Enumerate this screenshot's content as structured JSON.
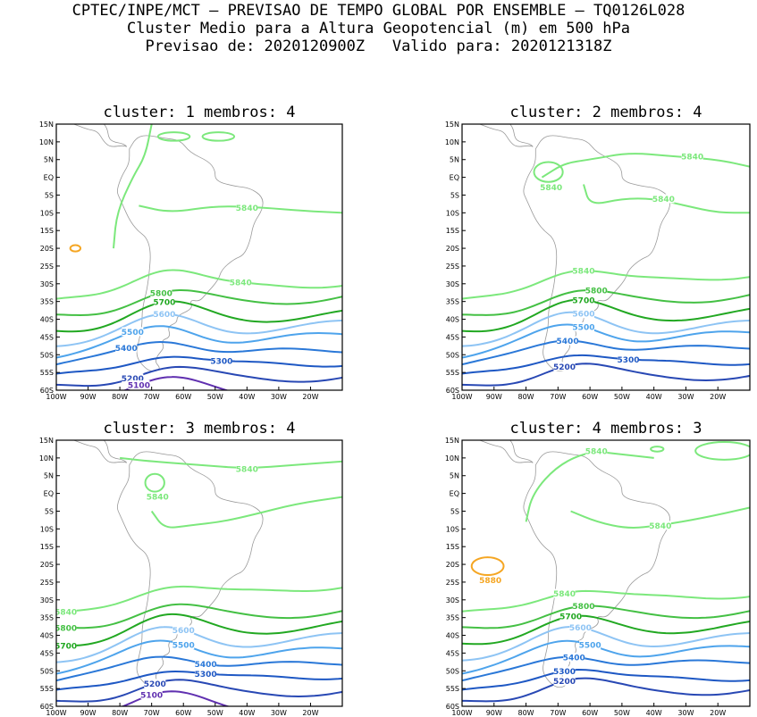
{
  "header": {
    "line1": "CPTEC/INPE/MCT — PREVISAO DE TEMPO GLOBAL POR ENSEMBLE — TQ0126L028",
    "line2": "Cluster Medio para a Altura Geopotencial (m) em 500 hPa",
    "line3": "Previsao de: 2020120900Z   Valido para: 2020121318Z"
  },
  "chart_data": {
    "type": "contour-map",
    "variable": "500 hPa geopotential height (m)",
    "lon_range": [
      -100,
      -10
    ],
    "lat_range": [
      -60,
      15
    ],
    "x_ticks": [
      "100W",
      "90W",
      "80W",
      "70W",
      "60W",
      "50W",
      "40W",
      "30W",
      "20W"
    ],
    "x_tick_lons": [
      -100,
      -90,
      -80,
      -70,
      -60,
      -50,
      -40,
      -30,
      -20
    ],
    "y_ticks": [
      "15N",
      "10N",
      "5N",
      "EQ",
      "5S",
      "10S",
      "15S",
      "20S",
      "25S",
      "30S",
      "35S",
      "40S",
      "45S",
      "50S",
      "55S",
      "60S"
    ],
    "y_tick_lats": [
      15,
      10,
      5,
      0,
      -5,
      -10,
      -15,
      -20,
      -25,
      -30,
      -35,
      -40,
      -45,
      -50,
      -55,
      -60
    ],
    "level_colors": {
      "5880": "#f5a623",
      "5840": "#7ce87c",
      "5800": "#44c044",
      "5700": "#22a822",
      "5600": "#8ec4f4",
      "5500": "#4ea4ec",
      "5400": "#2a78d8",
      "5300": "#1e58c4",
      "5200": "#2848b4",
      "5100": "#6030b0"
    },
    "panels": [
      {
        "title": "cluster: 1   membros: 4",
        "contours": [
          {
            "level": 5840,
            "lat_w": -35.5,
            "lat_c": -24.5,
            "lat_e": -29.5,
            "label": "5840",
            "label_lon": -42
          },
          {
            "level": 5800,
            "lat_w": -39.5,
            "lat_c": -31.5,
            "lat_e": -33.5,
            "label": "5800",
            "label_lon": -67
          },
          {
            "level": 5700,
            "lat_w": -43.0,
            "lat_c": -35.5,
            "lat_e": -38.5,
            "label": "5700",
            "label_lon": -66
          },
          {
            "level": 5600,
            "lat_w": -46.5,
            "lat_c": -39.0,
            "lat_e": -41.5,
            "label": "5600",
            "label_lon": -66
          },
          {
            "level": 5500,
            "lat_w": -50.0,
            "lat_c": -41.5,
            "lat_e": -44.5,
            "label": "5500",
            "label_lon": -76
          },
          {
            "level": 5400,
            "lat_w": -53.0,
            "lat_c": -45.0,
            "lat_e": -48.5,
            "label": "5400",
            "label_lon": -78
          },
          {
            "level": 5300,
            "lat_w": -56.5,
            "lat_c": -49.0,
            "lat_e": -52.0,
            "label": "5300",
            "label_lon": -48
          },
          {
            "level": 5200,
            "lat_w": -59.5,
            "lat_c": -53.0,
            "lat_e": -56.0,
            "label": "5200",
            "label_lon": -76
          },
          {
            "level": 5100,
            "lat_w": -62.0,
            "lat_c": -57.0,
            "lat_e": -61.0,
            "label": "5100",
            "label_lon": -74
          }
        ]
      },
      {
        "title": "cluster: 2   membros: 4",
        "contours": [
          {
            "level": 5840,
            "lat_w": -35.5,
            "lat_c": -24.5,
            "lat_e": -27.0,
            "label": "5840",
            "label_lon": -62
          },
          {
            "level": 5800,
            "lat_w": -39.5,
            "lat_c": -31.5,
            "lat_e": -33.0,
            "label": "5800",
            "label_lon": -58
          },
          {
            "level": 5700,
            "lat_w": -43.0,
            "lat_c": -35.0,
            "lat_e": -38.0,
            "label": "5700",
            "label_lon": -62
          },
          {
            "level": 5600,
            "lat_w": -46.5,
            "lat_c": -38.5,
            "lat_e": -41.5,
            "label": "5600",
            "label_lon": -62
          },
          {
            "level": 5500,
            "lat_w": -50.0,
            "lat_c": -41.0,
            "lat_e": -44.0,
            "label": "5500",
            "label_lon": -62
          },
          {
            "level": 5400,
            "lat_w": -53.0,
            "lat_c": -44.5,
            "lat_e": -47.5,
            "label": "5400",
            "label_lon": -67
          },
          {
            "level": 5300,
            "lat_w": -56.5,
            "lat_c": -48.5,
            "lat_e": -51.5,
            "label": "5300",
            "label_lon": -48
          },
          {
            "level": 5200,
            "lat_w": -59.5,
            "lat_c": -52.0,
            "lat_e": -55.5,
            "label": "5200",
            "label_lon": -68
          }
        ]
      },
      {
        "title": "cluster: 3   membros: 4",
        "contours": [
          {
            "level": 5840,
            "lat_w": -35.0,
            "lat_c": -24.5,
            "lat_e": -25.5,
            "label": "5840",
            "label_lon": -97
          },
          {
            "level": 5800,
            "lat_w": -38.5,
            "lat_c": -31.0,
            "lat_e": -33.0,
            "label": "5800",
            "label_lon": -97
          },
          {
            "level": 5700,
            "lat_w": -42.5,
            "lat_c": -34.5,
            "lat_e": -37.0,
            "label": "5700",
            "label_lon": -97
          },
          {
            "level": 5600,
            "lat_w": -46.5,
            "lat_c": -38.0,
            "lat_e": -40.5,
            "label": "5600",
            "label_lon": -60
          },
          {
            "level": 5500,
            "lat_w": -50.0,
            "lat_c": -41.0,
            "lat_e": -44.0,
            "label": "5500",
            "label_lon": -60
          },
          {
            "level": 5400,
            "lat_w": -53.0,
            "lat_c": -44.5,
            "lat_e": -47.5,
            "label": "5400",
            "label_lon": -53
          },
          {
            "level": 5300,
            "lat_w": -56.5,
            "lat_c": -48.5,
            "lat_e": -51.0,
            "label": "5300",
            "label_lon": -53
          },
          {
            "level": 5200,
            "lat_w": -59.5,
            "lat_c": -52.0,
            "lat_e": -55.5,
            "label": "5200",
            "label_lon": -69
          },
          {
            "level": 5100,
            "lat_w": -62.0,
            "lat_c": -56.5,
            "lat_e": -61.0,
            "label": "5100",
            "label_lon": -70
          }
        ]
      },
      {
        "title": "cluster: 4   membros: 3",
        "contours": [
          {
            "level": 5840,
            "lat_w": -34.5,
            "lat_c": -26.0,
            "lat_e": -28.0,
            "label": "5840",
            "label_lon": -68
          },
          {
            "level": 5800,
            "lat_w": -38.5,
            "lat_c": -31.5,
            "lat_e": -33.0,
            "label": "5800",
            "label_lon": -62
          },
          {
            "level": 5700,
            "lat_w": -42.0,
            "lat_c": -35.0,
            "lat_e": -37.0,
            "label": "5700",
            "label_lon": -66
          },
          {
            "level": 5600,
            "lat_w": -46.0,
            "lat_c": -38.0,
            "lat_e": -40.5,
            "label": "5600",
            "label_lon": -63
          },
          {
            "level": 5500,
            "lat_w": -50.0,
            "lat_c": -41.0,
            "lat_e": -43.5,
            "label": "5500",
            "label_lon": -60
          },
          {
            "level": 5400,
            "lat_w": -53.0,
            "lat_c": -44.5,
            "lat_e": -47.0,
            "label": "5400",
            "label_lon": -65
          },
          {
            "level": 5300,
            "lat_w": -56.5,
            "lat_c": -48.0,
            "lat_e": -51.5,
            "label": "5300",
            "label_lon": -68
          },
          {
            "level": 5200,
            "lat_w": -59.5,
            "lat_c": -51.5,
            "lat_e": -55.0,
            "label": "5200",
            "label_lon": -68
          }
        ]
      }
    ],
    "closed_contours": [
      {
        "panel": 0,
        "level": 5880,
        "lon": -94,
        "lat": -20,
        "rx": 1.6,
        "ry": 0.9,
        "label": ""
      },
      {
        "panel": 0,
        "level": 5840,
        "lon": -63,
        "lat": 11.5,
        "rx": 5,
        "ry": 1.2,
        "label": ""
      },
      {
        "panel": 0,
        "level": 5840,
        "lon": -49,
        "lat": 11.5,
        "rx": 5,
        "ry": 1.2,
        "label": ""
      },
      {
        "panel": 1,
        "level": 5840,
        "lon": -73,
        "lat": 1.5,
        "rx": 4.5,
        "ry": 2.8,
        "label": "5840"
      },
      {
        "panel": 2,
        "level": 5840,
        "lon": -69,
        "lat": 3,
        "rx": 3,
        "ry": 2.5,
        "label": "5840"
      },
      {
        "panel": 3,
        "level": 5880,
        "lon": -92,
        "lat": -20.5,
        "rx": 5,
        "ry": 2.5,
        "label": "5880"
      },
      {
        "panel": 3,
        "level": 5840,
        "lon": -39,
        "lat": 12.5,
        "rx": 2,
        "ry": 0.7,
        "label": ""
      },
      {
        "panel": 3,
        "level": 5840,
        "lon": -18,
        "lat": 12,
        "rx": 9,
        "ry": 2.5,
        "label": ""
      }
    ],
    "tropical_5840": [
      {
        "panel": 0,
        "points": [
          [
            -82,
            -20
          ],
          [
            -81,
            -10
          ],
          [
            -76,
            0
          ],
          [
            -72,
            6
          ],
          [
            -70,
            15
          ]
        ],
        "label": ""
      },
      {
        "panel": 0,
        "points": [
          [
            -74,
            -8
          ],
          [
            -64,
            -10
          ],
          [
            -50,
            -8
          ],
          [
            -35,
            -8.5
          ],
          [
            -22,
            -9.5
          ],
          [
            -10,
            -10
          ]
        ],
        "label": "5840",
        "label_lon": -40
      },
      {
        "panel": 1,
        "points": [
          [
            -75,
            0
          ],
          [
            -68,
            4
          ],
          [
            -60,
            5
          ],
          [
            -48,
            7
          ],
          [
            -35,
            6
          ],
          [
            -20,
            5
          ],
          [
            -10,
            3
          ]
        ],
        "label": "5840",
        "label_lon": -28
      },
      {
        "panel": 1,
        "points": [
          [
            -62,
            -2
          ],
          [
            -60,
            -8
          ],
          [
            -50,
            -6
          ],
          [
            -40,
            -6
          ],
          [
            -30,
            -8
          ],
          [
            -20,
            -10
          ],
          [
            -10,
            -10
          ]
        ],
        "label": "5840",
        "label_lon": -37
      },
      {
        "panel": 2,
        "points": [
          [
            -80,
            10
          ],
          [
            -70,
            9
          ],
          [
            -55,
            8
          ],
          [
            -40,
            7
          ],
          [
            -25,
            8
          ],
          [
            -10,
            9
          ]
        ],
        "label": "5840",
        "label_lon": -40
      },
      {
        "panel": 2,
        "points": [
          [
            -70,
            -5
          ],
          [
            -66,
            -10
          ],
          [
            -58,
            -9
          ],
          [
            -48,
            -8
          ],
          [
            -38,
            -6
          ],
          [
            -25,
            -3
          ],
          [
            -10,
            -1
          ]
        ],
        "label": "",
        "label_lon": -40
      },
      {
        "panel": 3,
        "points": [
          [
            -80,
            -8
          ],
          [
            -78,
            0
          ],
          [
            -70,
            8
          ],
          [
            -60,
            12
          ],
          [
            -50,
            11
          ],
          [
            -40,
            10
          ]
        ],
        "label": "5840",
        "label_lon": -58
      },
      {
        "panel": 3,
        "points": [
          [
            -66,
            -5
          ],
          [
            -58,
            -8
          ],
          [
            -48,
            -10
          ],
          [
            -38,
            -9
          ],
          [
            -25,
            -7
          ],
          [
            -10,
            -4
          ]
        ],
        "label": "5840",
        "label_lon": -38
      }
    ]
  }
}
